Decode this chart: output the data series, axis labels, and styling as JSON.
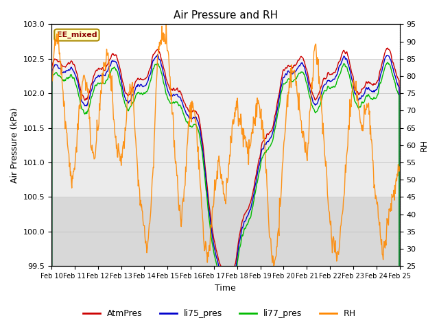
{
  "title": "Air Pressure and RH",
  "xlabel": "Time",
  "ylabel_left": "Air Pressure (kPa)",
  "ylabel_right": "RH",
  "annotation": "EE_mixed",
  "ylim_left": [
    99.5,
    103.0
  ],
  "ylim_right": [
    25,
    95
  ],
  "yticks_left": [
    99.5,
    100.0,
    100.5,
    101.0,
    101.5,
    102.0,
    102.5,
    103.0
  ],
  "yticks_right": [
    25,
    30,
    35,
    40,
    45,
    50,
    55,
    60,
    65,
    70,
    75,
    80,
    85,
    90,
    95
  ],
  "xtick_labels": [
    "Feb 10",
    "Feb 11",
    "Feb 12",
    "Feb 13",
    "Feb 14",
    "Feb 15",
    "Feb 16",
    "Feb 17",
    "Feb 18",
    "Feb 19",
    "Feb 20",
    "Feb 21",
    "Feb 22",
    "Feb 23",
    "Feb 24",
    "Feb 25"
  ],
  "color_atm": "#cc0000",
  "color_li75": "#0000cc",
  "color_li77": "#00bb00",
  "color_rh": "#ff8800",
  "legend_entries": [
    "AtmPres",
    "li75_pres",
    "li77_pres",
    "RH"
  ],
  "band_light": "#ebebeb",
  "band_dark": "#d8d8d8",
  "linewidth": 1.0,
  "figsize": [
    6.4,
    4.8
  ],
  "dpi": 100
}
